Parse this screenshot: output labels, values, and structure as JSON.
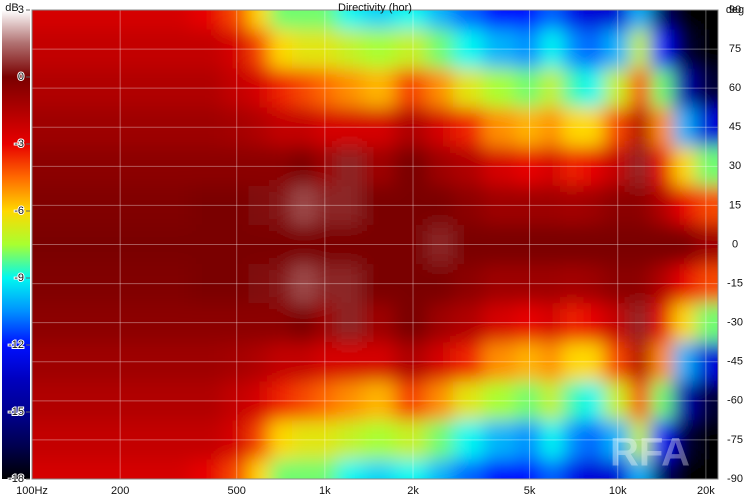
{
  "chart_data": {
    "type": "heatmap",
    "title": "Directivity (hor)",
    "colorbar_label": "dB",
    "y_label": "deg",
    "watermark": "RFA",
    "x": [
      100,
      150,
      200,
      300,
      400,
      500,
      600,
      700,
      850,
      1000,
      1200,
      1500,
      2000,
      2500,
      3000,
      4000,
      5000,
      6000,
      7000,
      8000,
      10000,
      12000,
      14000,
      17000,
      20000
    ],
    "y": [
      90,
      75,
      60,
      45,
      30,
      15,
      0,
      -15,
      -30,
      -45,
      -60,
      -75,
      -90
    ],
    "z": [
      [
        -2.5,
        -2.5,
        -2.5,
        -2.5,
        -3,
        -4,
        -6,
        -8,
        -8,
        -8,
        -9,
        -9.5,
        -9,
        -10,
        -11,
        -12,
        -12,
        -11,
        -12.5,
        -13,
        -13,
        -10,
        -16,
        -18,
        -18
      ],
      [
        -2,
        -2,
        -2,
        -2,
        -2,
        -2.5,
        -4,
        -6,
        -6.5,
        -6.5,
        -7,
        -7.5,
        -7,
        -8,
        -9,
        -10,
        -10.5,
        -9,
        -10.5,
        -11,
        -10,
        -7,
        -12,
        -17,
        -18
      ],
      [
        -1.5,
        -1.5,
        -1.5,
        -1.5,
        -1.5,
        -2,
        -2.5,
        -3.5,
        -4,
        -4.5,
        -5,
        -5.5,
        -4,
        -5,
        -6.5,
        -7.5,
        -8,
        -7,
        -8.5,
        -9,
        -7,
        -4,
        -8,
        -14,
        -17
      ],
      [
        -1,
        -1,
        -1,
        -1,
        -1,
        -1.2,
        -1.5,
        -2,
        -2,
        -2.5,
        -2.5,
        -2.5,
        -1.5,
        -2.5,
        -3.5,
        -5,
        -5.5,
        -5,
        -6,
        -6,
        -4,
        -1.5,
        -5,
        -10,
        -13
      ],
      [
        -0.5,
        -0.5,
        -0.5,
        -0.5,
        -0.5,
        -0.5,
        -0.5,
        -0.5,
        0,
        -1,
        0.5,
        -1,
        0,
        -1,
        -1.5,
        -2.5,
        -3,
        -2.5,
        -3.5,
        -3,
        -2,
        0.5,
        -3,
        -6,
        -8
      ],
      [
        -0.2,
        -0.2,
        -0.2,
        -0.2,
        0,
        0,
        0.2,
        0.3,
        1,
        0.5,
        0.5,
        0,
        0,
        0,
        -0.5,
        -1,
        -1,
        -1,
        -1.2,
        -1,
        -0.5,
        -0.5,
        -1.5,
        -3,
        -4
      ],
      [
        0,
        0,
        0,
        0,
        0,
        0,
        0,
        0,
        0,
        0,
        0,
        0,
        0,
        0.5,
        0,
        0,
        0,
        0,
        0,
        0,
        0,
        0,
        0,
        0,
        -1
      ],
      [
        -0.2,
        -0.2,
        -0.2,
        -0.2,
        0,
        0,
        0.2,
        0.3,
        1,
        0.5,
        0.5,
        0,
        0,
        0,
        -0.5,
        -1,
        -1,
        -1,
        -1.2,
        -1,
        -0.5,
        -0.5,
        -1.5,
        -3,
        -4
      ],
      [
        -0.5,
        -0.5,
        -0.5,
        -0.5,
        -0.5,
        -0.5,
        -0.5,
        -0.5,
        0,
        -1,
        0.5,
        -1,
        0,
        -1,
        -1.5,
        -2.5,
        -3,
        -2.5,
        -3.5,
        -3,
        -2,
        0.5,
        -3,
        -6,
        -8
      ],
      [
        -1,
        -1,
        -1,
        -1,
        -1,
        -1.2,
        -1.5,
        -2,
        -2,
        -2.5,
        -2.5,
        -2.5,
        -1.5,
        -2.5,
        -3.5,
        -5,
        -5.5,
        -5,
        -6,
        -6,
        -4,
        -1.5,
        -5,
        -10,
        -13
      ],
      [
        -1.5,
        -1.5,
        -1.5,
        -1.5,
        -1.5,
        -2,
        -2.5,
        -3.5,
        -4,
        -4.5,
        -5,
        -5.5,
        -4,
        -5,
        -6.5,
        -7.5,
        -8,
        -7,
        -8.5,
        -9,
        -7,
        -4,
        -8,
        -14,
        -17
      ],
      [
        -2,
        -2,
        -2,
        -2,
        -2,
        -2.5,
        -4,
        -6,
        -6.5,
        -6.5,
        -7,
        -7.5,
        -7,
        -8,
        -9,
        -10,
        -10.5,
        -9,
        -10.5,
        -11,
        -10,
        -7,
        -12,
        -17,
        -18
      ],
      [
        -2.5,
        -2.5,
        -2.5,
        -2.5,
        -3,
        -4,
        -6,
        -8,
        -8,
        -8,
        -9,
        -9.5,
        -9,
        -10,
        -11,
        -12,
        -12,
        -11,
        -12.5,
        -13,
        -13,
        -10,
        -16,
        -18,
        -18
      ]
    ],
    "x_log": true,
    "xlim": [
      100,
      22000
    ],
    "xticks": [
      {
        "value": 100,
        "label": "100Hz"
      },
      200,
      500,
      {
        "value": 1000,
        "label": "1k"
      },
      {
        "value": 2000,
        "label": "2k"
      },
      {
        "value": 5000,
        "label": "5k"
      },
      {
        "value": 10000,
        "label": "10k"
      },
      {
        "value": 20000,
        "label": "20k"
      }
    ],
    "ylim": [
      -90,
      90
    ],
    "yticks": [
      90,
      75,
      60,
      45,
      30,
      15,
      0,
      -15,
      -30,
      -45,
      -60,
      -75,
      -90
    ],
    "zlim": [
      -18,
      3
    ],
    "zticks": [
      3,
      0,
      -3,
      -6,
      -9,
      -12,
      -15,
      -18
    ],
    "colorscale": [
      "#ffffff",
      "#b07070",
      "#7a0000",
      "#b00000",
      "#e80000",
      "#ff6a00",
      "#ffd800",
      "#a8ff30",
      "#00f8f0",
      "#0090ff",
      "#0010ff",
      "#0000c0",
      "#000090",
      "#000050",
      "#000000"
    ],
    "grid": true
  }
}
